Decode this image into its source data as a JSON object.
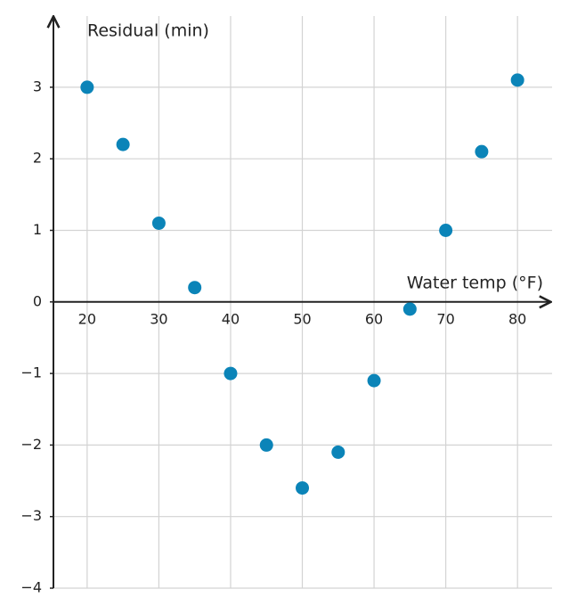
{
  "chart_data": {
    "type": "scatter",
    "xlabel": "Water temp (°F)",
    "ylabel": "Residual (min)",
    "x": [
      20,
      25,
      30,
      35,
      40,
      45,
      50,
      55,
      60,
      65,
      70,
      75,
      80
    ],
    "series": [
      {
        "color": "#0b84b8",
        "values": [
          3,
          2.2,
          1.1,
          0.2,
          -1,
          -2,
          -2.6,
          -2.1,
          -1.1,
          -0.1,
          1,
          2.1,
          3.1
        ]
      }
    ],
    "xlim": [
      15.3,
      84.2
    ],
    "ylim": [
      -4,
      3.97
    ],
    "xticks": [
      20,
      30,
      40,
      50,
      60,
      70,
      80
    ],
    "yticks": [
      {
        "value": -4,
        "label": "−4"
      },
      {
        "value": -3,
        "label": "−3"
      },
      {
        "value": -2,
        "label": "−2"
      },
      {
        "value": -1,
        "label": "−1"
      },
      0,
      1,
      2,
      3
    ],
    "grid": true
  }
}
